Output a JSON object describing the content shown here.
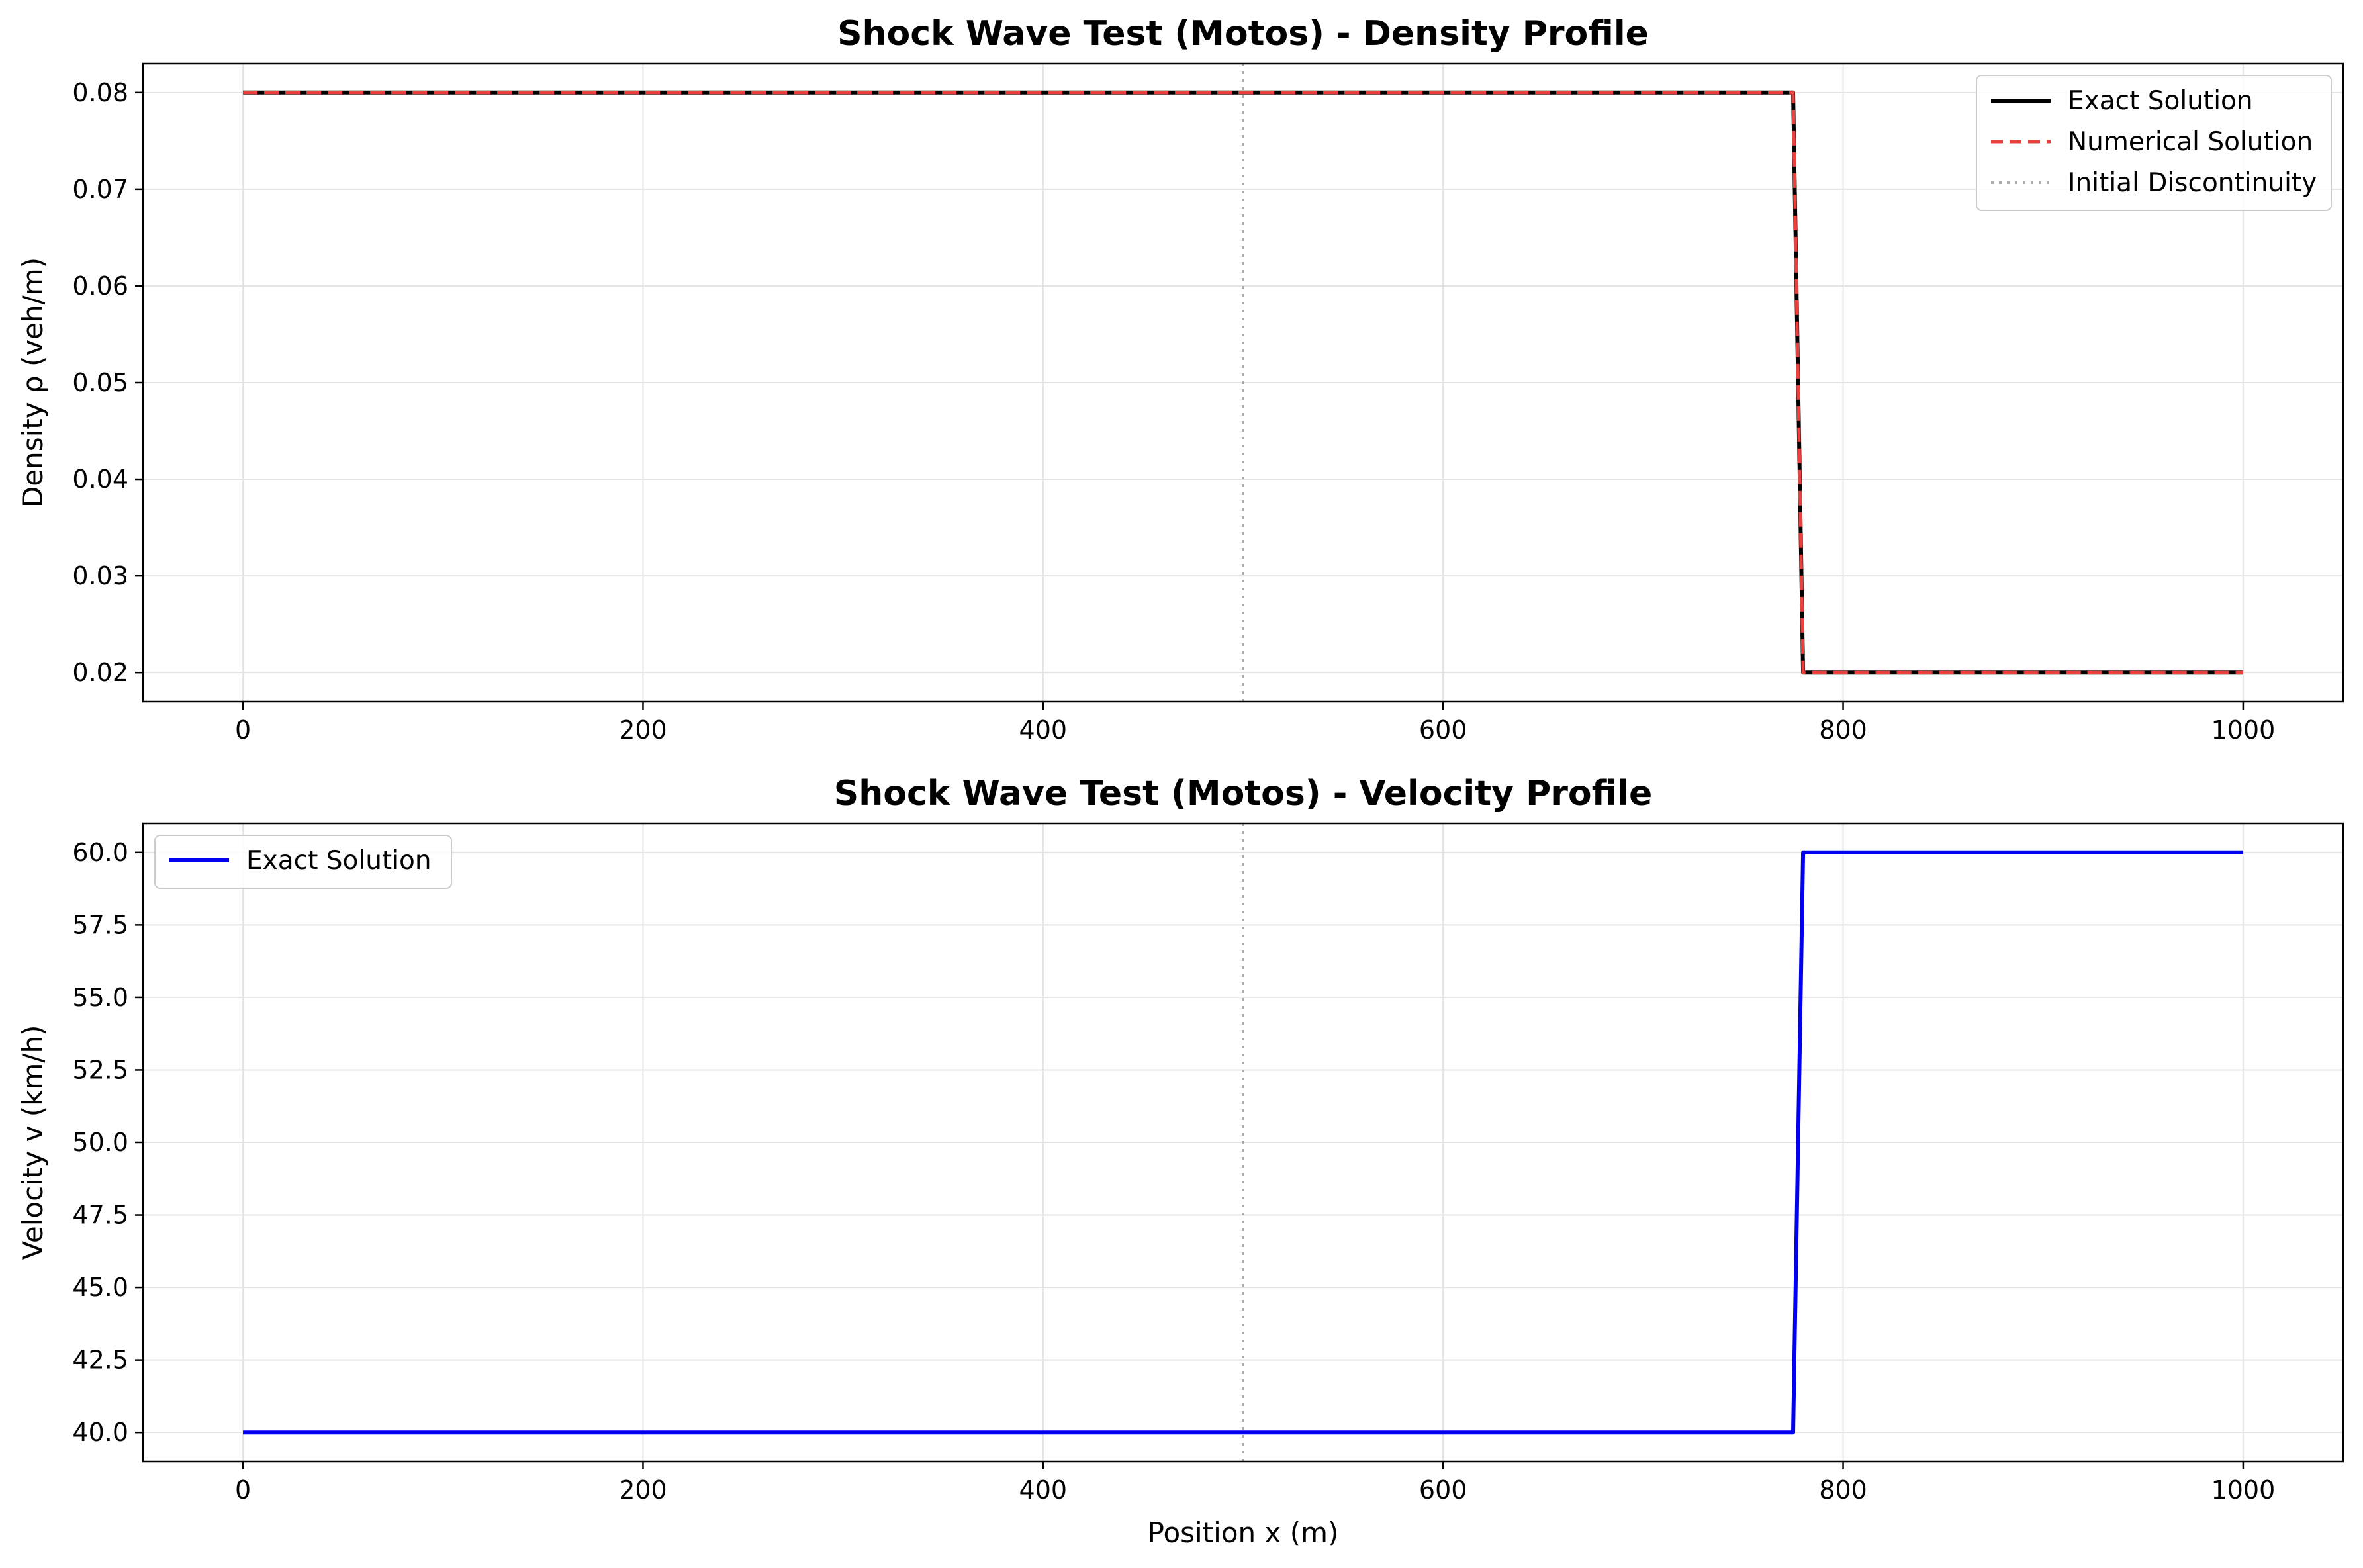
{
  "chart_data": [
    {
      "type": "line",
      "title": "Shock Wave Test (Motos) - Density Profile",
      "xlabel": "",
      "ylabel": "Density ρ (veh/m)",
      "xlim": [
        -50,
        1050
      ],
      "ylim": [
        0.017,
        0.083
      ],
      "xticks": [
        0,
        200,
        400,
        600,
        800,
        1000
      ],
      "yticks": [
        0.02,
        0.03,
        0.04,
        0.05,
        0.06,
        0.07,
        0.08
      ],
      "xtick_labels": [
        "0",
        "200",
        "400",
        "600",
        "800",
        "1000"
      ],
      "ytick_labels": [
        "0.02",
        "0.03",
        "0.04",
        "0.05",
        "0.06",
        "0.07",
        "0.08"
      ],
      "grid": true,
      "legend_position": "upper-right",
      "series": [
        {
          "name": "Exact Solution",
          "color": "#000000",
          "style": "solid",
          "x": [
            0,
            775,
            780,
            1000
          ],
          "y": [
            0.08,
            0.08,
            0.02,
            0.02
          ]
        },
        {
          "name": "Numerical Solution",
          "color": "#e8413e",
          "style": "dashed",
          "x": [
            0,
            775,
            780,
            1000
          ],
          "y": [
            0.08,
            0.08,
            0.02,
            0.02
          ]
        },
        {
          "name": "Initial Discontinuity",
          "color": "#aaaaaa",
          "style": "dotted",
          "x": [
            500,
            500
          ],
          "y": [
            0.017,
            0.083
          ]
        }
      ]
    },
    {
      "type": "line",
      "title": "Shock Wave Test (Motos) - Velocity Profile",
      "xlabel": "Position x (m)",
      "ylabel": "Velocity v (km/h)",
      "xlim": [
        -50,
        1050
      ],
      "ylim": [
        39.0,
        61.0
      ],
      "xticks": [
        0,
        200,
        400,
        600,
        800,
        1000
      ],
      "yticks": [
        40.0,
        42.5,
        45.0,
        47.5,
        50.0,
        52.5,
        55.0,
        57.5,
        60.0
      ],
      "xtick_labels": [
        "0",
        "200",
        "400",
        "600",
        "800",
        "1000"
      ],
      "ytick_labels": [
        "40.0",
        "42.5",
        "45.0",
        "47.5",
        "50.0",
        "52.5",
        "55.0",
        "57.5",
        "60.0"
      ],
      "grid": true,
      "legend_position": "upper-left",
      "series": [
        {
          "name": "Exact Solution",
          "color": "#0000ee",
          "style": "solid",
          "x": [
            0,
            775,
            780,
            1000
          ],
          "y": [
            40,
            40,
            60,
            60
          ]
        },
        {
          "name": "",
          "color": "#aaaaaa",
          "style": "dotted",
          "legend": false,
          "x": [
            500,
            500
          ],
          "y": [
            39.0,
            61.0
          ]
        }
      ]
    }
  ]
}
